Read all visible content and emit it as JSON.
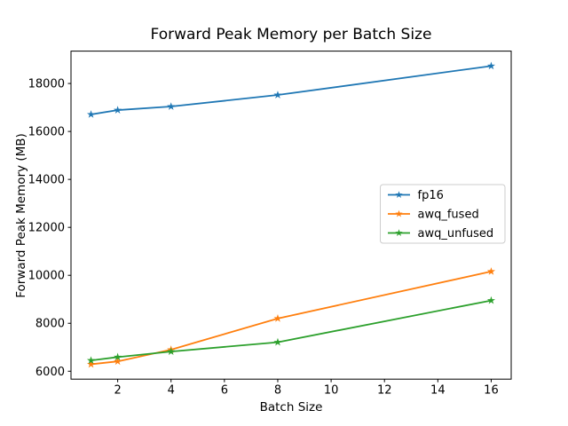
{
  "figure": {
    "title": "Forward Peak Memory per Batch Size",
    "xlabel": "Batch Size",
    "ylabel": "Forward Peak Memory (MB)"
  },
  "chart_data": {
    "type": "line",
    "title": "Forward Peak Memory per Batch Size",
    "xlabel": "Batch Size",
    "ylabel": "Forward Peak Memory (MB)",
    "x": [
      1,
      2,
      4,
      8,
      16
    ],
    "series": [
      {
        "name": "fp16",
        "color": "#1f77b4",
        "marker": "star",
        "values": [
          16710,
          16890,
          17040,
          17520,
          18730
        ]
      },
      {
        "name": "awq_fused",
        "color": "#ff7f0e",
        "marker": "star",
        "values": [
          6290,
          6410,
          6900,
          8200,
          10160
        ]
      },
      {
        "name": "awq_unfused",
        "color": "#2ca02c",
        "marker": "star",
        "values": [
          6450,
          6590,
          6820,
          7210,
          8950
        ]
      }
    ],
    "xlim": [
      0.25,
      16.75
    ],
    "ylim": [
      5670,
      19350
    ],
    "xticks": [
      2,
      4,
      6,
      8,
      10,
      12,
      14,
      16
    ],
    "yticks": [
      6000,
      8000,
      10000,
      12000,
      14000,
      16000,
      18000
    ],
    "grid": false,
    "legend": {
      "position": "center right",
      "entries": [
        "fp16",
        "awq_fused",
        "awq_unfused"
      ]
    },
    "style": {
      "spine_color": "#000000",
      "background": "#ffffff",
      "legend_border": "#cccccc",
      "legend_background": "#ffffff"
    }
  }
}
